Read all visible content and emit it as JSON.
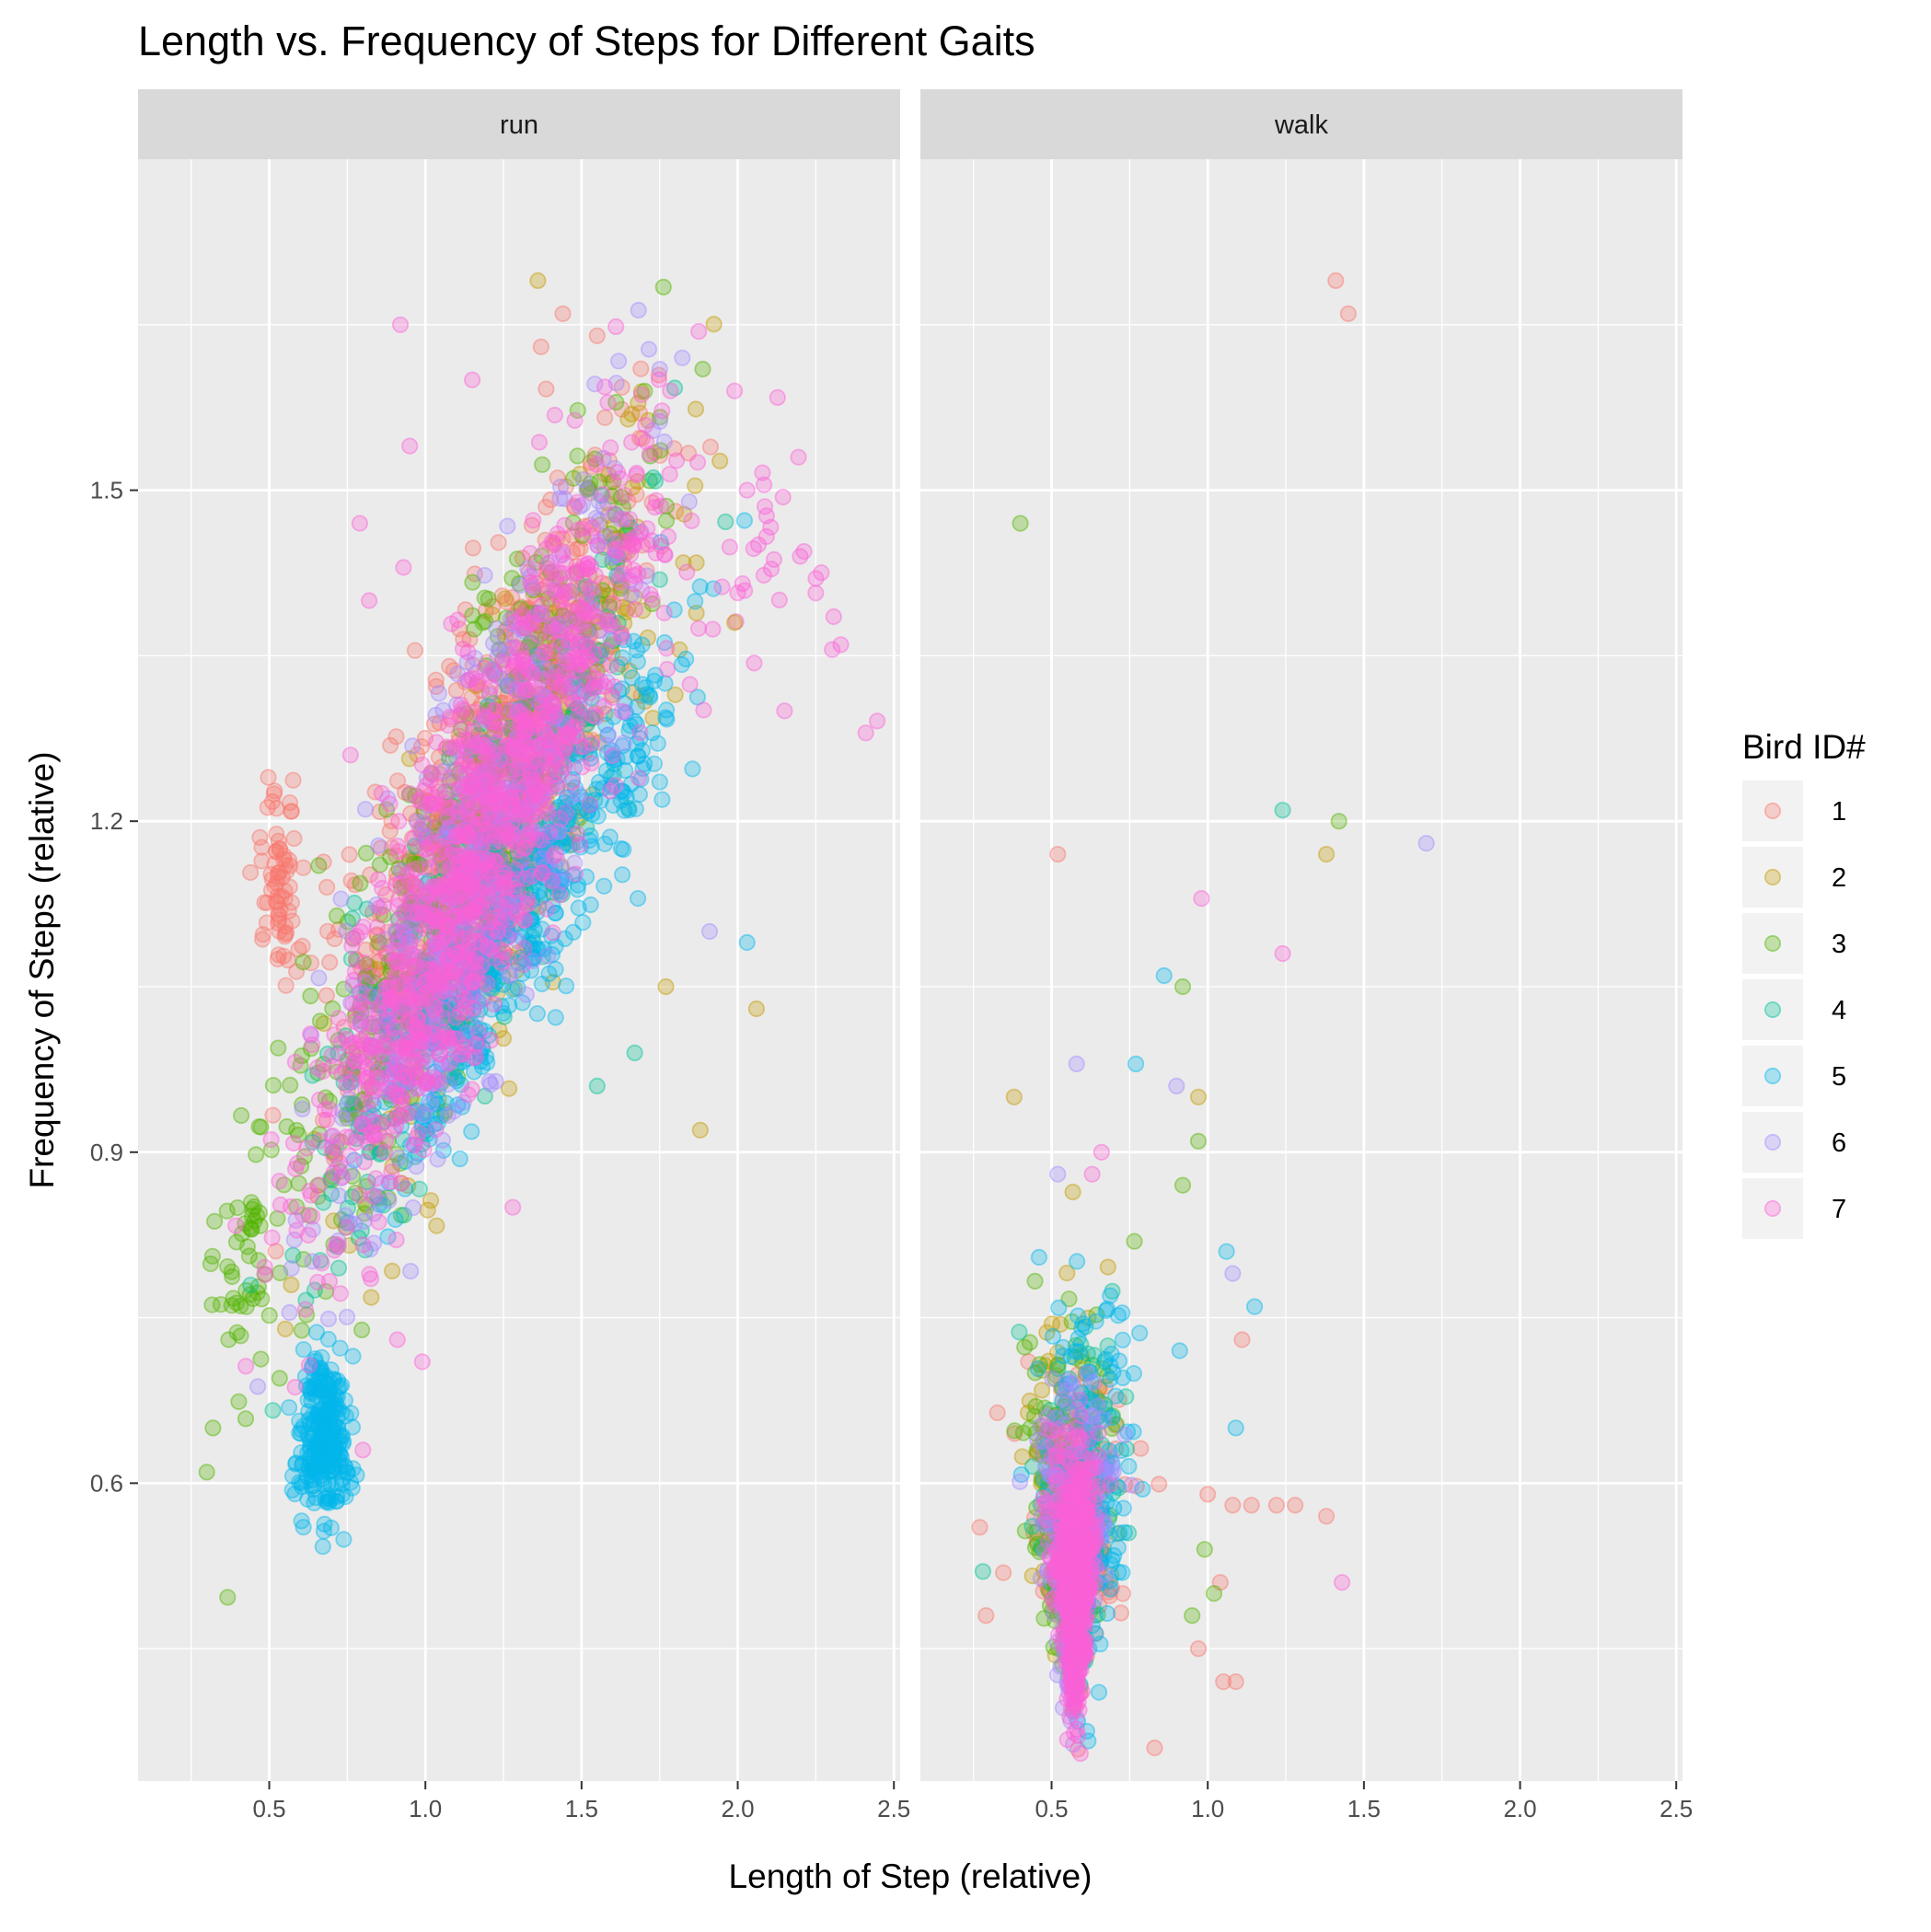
{
  "chart_data": {
    "type": "scatter",
    "title": "Length vs. Frequency of Steps for Different Gaits",
    "xlabel": "Length of Step (relative)",
    "ylabel": "Frequency of Steps (relative)",
    "xlim": [
      0.08,
      2.52
    ],
    "ylim": [
      0.33,
      1.8
    ],
    "x_ticks": [
      0.5,
      1.0,
      1.5,
      2.0,
      2.5
    ],
    "x_tick_labels": [
      "0.5",
      "1.0",
      "1.5",
      "2.0",
      "2.5"
    ],
    "y_ticks": [
      0.6,
      0.9,
      1.2,
      1.5
    ],
    "y_tick_labels": [
      "0.6",
      "0.9",
      "1.2",
      "1.5"
    ],
    "facets": [
      "run",
      "walk"
    ],
    "grid": true,
    "legend": {
      "title": "Bird ID#",
      "position": "right",
      "entries": [
        "1",
        "2",
        "3",
        "4",
        "5",
        "6",
        "7"
      ]
    },
    "series_colors": [
      "#F8766D",
      "#C49A00",
      "#53B400",
      "#00C094",
      "#00B6EB",
      "#A58AFF",
      "#FB61D7"
    ],
    "point_alpha": 0.3,
    "clusters": {
      "run": [
        {
          "bird": 1,
          "n": 500,
          "x": [
            0.6,
            1.8
          ],
          "y": [
            0.95,
            1.58
          ],
          "slope": 0.5
        },
        {
          "bird": 1,
          "n": 70,
          "x": [
            0.45,
            0.62
          ],
          "y": [
            1.05,
            1.23
          ],
          "slope": 0
        },
        {
          "bird": 2,
          "n": 350,
          "x": [
            0.65,
            1.9
          ],
          "y": [
            0.85,
            1.55
          ],
          "slope": 0.55
        },
        {
          "bird": 3,
          "n": 450,
          "x": [
            0.4,
            1.75
          ],
          "y": [
            0.78,
            1.5
          ],
          "slope": 0.55
        },
        {
          "bird": 3,
          "n": 40,
          "x": [
            0.28,
            0.55
          ],
          "y": [
            0.6,
            1.0
          ],
          "slope": 0.3
        },
        {
          "bird": 4,
          "n": 300,
          "x": [
            0.6,
            1.8
          ],
          "y": [
            0.85,
            1.45
          ],
          "slope": 0.5
        },
        {
          "bird": 5,
          "n": 450,
          "x": [
            0.75,
            1.9
          ],
          "y": [
            0.88,
            1.38
          ],
          "slope": 0.45
        },
        {
          "bird": 5,
          "n": 250,
          "x": [
            0.58,
            0.78
          ],
          "y": [
            0.56,
            0.72
          ],
          "slope": 0
        },
        {
          "bird": 6,
          "n": 500,
          "x": [
            0.6,
            1.75
          ],
          "y": [
            0.78,
            1.55
          ],
          "slope": 0.6
        },
        {
          "bird": 7,
          "n": 1100,
          "x": [
            0.55,
            1.75
          ],
          "y": [
            0.82,
            1.52
          ],
          "slope": 0.55
        },
        {
          "bird": 7,
          "n": 45,
          "x": [
            1.6,
            2.4
          ],
          "y": [
            1.28,
            1.6
          ],
          "slope": 0
        }
      ],
      "walk": [
        {
          "bird": 1,
          "n": 120,
          "x": [
            0.3,
            0.85
          ],
          "y": [
            0.4,
            0.72
          ],
          "slope": 0
        },
        {
          "bird": 2,
          "n": 100,
          "x": [
            0.38,
            0.75
          ],
          "y": [
            0.4,
            0.8
          ],
          "slope": 0
        },
        {
          "bird": 3,
          "n": 130,
          "x": [
            0.35,
            0.72
          ],
          "y": [
            0.4,
            0.8
          ],
          "slope": 0
        },
        {
          "bird": 4,
          "n": 120,
          "x": [
            0.42,
            0.75
          ],
          "y": [
            0.38,
            0.78
          ],
          "slope": 0
        },
        {
          "bird": 5,
          "n": 160,
          "x": [
            0.45,
            0.8
          ],
          "y": [
            0.38,
            0.82
          ],
          "slope": 0
        },
        {
          "bird": 6,
          "n": 200,
          "x": [
            0.42,
            0.72
          ],
          "y": [
            0.38,
            0.7
          ],
          "slope": 0
        },
        {
          "bird": 7,
          "n": 600,
          "x": [
            0.47,
            0.68
          ],
          "y": [
            0.38,
            0.65
          ],
          "slope": 0
        }
      ]
    },
    "outliers": {
      "run": [
        {
          "bird": 2,
          "x": 1.36,
          "y": 1.69
        },
        {
          "bird": 1,
          "x": 1.44,
          "y": 1.66
        },
        {
          "bird": 1,
          "x": 1.55,
          "y": 1.64
        },
        {
          "bird": 1,
          "x": 1.37,
          "y": 1.63
        },
        {
          "bird": 7,
          "x": 0.92,
          "y": 1.65
        },
        {
          "bird": 7,
          "x": 1.15,
          "y": 1.6
        },
        {
          "bird": 1,
          "x": 1.69,
          "y": 1.61
        },
        {
          "bird": 7,
          "x": 0.95,
          "y": 1.54
        },
        {
          "bird": 7,
          "x": 1.99,
          "y": 1.59
        },
        {
          "bird": 7,
          "x": 2.03,
          "y": 1.5
        },
        {
          "bird": 7,
          "x": 2.2,
          "y": 1.44
        },
        {
          "bird": 7,
          "x": 2.25,
          "y": 1.42
        },
        {
          "bird": 7,
          "x": 2.33,
          "y": 1.36
        },
        {
          "bird": 7,
          "x": 2.41,
          "y": 1.28
        },
        {
          "bird": 7,
          "x": 2.15,
          "y": 1.3
        },
        {
          "bird": 2,
          "x": 1.99,
          "y": 1.38
        },
        {
          "bird": 2,
          "x": 2.06,
          "y": 1.03
        },
        {
          "bird": 2,
          "x": 1.88,
          "y": 0.92
        },
        {
          "bird": 5,
          "x": 2.03,
          "y": 1.09
        },
        {
          "bird": 6,
          "x": 1.91,
          "y": 1.1
        },
        {
          "bird": 4,
          "x": 1.67,
          "y": 0.99
        },
        {
          "bird": 4,
          "x": 1.55,
          "y": 0.96
        },
        {
          "bird": 2,
          "x": 1.77,
          "y": 1.05
        },
        {
          "bird": 7,
          "x": 1.28,
          "y": 0.85
        },
        {
          "bird": 7,
          "x": 0.99,
          "y": 0.71
        },
        {
          "bird": 7,
          "x": 0.91,
          "y": 0.73
        },
        {
          "bird": 7,
          "x": 0.8,
          "y": 0.63
        },
        {
          "bird": 7,
          "x": 0.79,
          "y": 1.47
        },
        {
          "bird": 7,
          "x": 0.93,
          "y": 1.43
        },
        {
          "bird": 7,
          "x": 0.82,
          "y": 1.4
        },
        {
          "bird": 3,
          "x": 0.3,
          "y": 0.61
        },
        {
          "bird": 3,
          "x": 0.32,
          "y": 0.65
        },
        {
          "bird": 3,
          "x": 0.37,
          "y": 0.73
        },
        {
          "bird": 7,
          "x": 0.76,
          "y": 1.26
        }
      ],
      "walk": [
        {
          "bird": 1,
          "x": 1.41,
          "y": 1.69
        },
        {
          "bird": 1,
          "x": 1.45,
          "y": 1.66
        },
        {
          "bird": 3,
          "x": 0.4,
          "y": 1.47
        },
        {
          "bird": 4,
          "x": 1.24,
          "y": 1.21
        },
        {
          "bird": 3,
          "x": 1.42,
          "y": 1.2
        },
        {
          "bird": 6,
          "x": 1.7,
          "y": 1.18
        },
        {
          "bird": 2,
          "x": 1.38,
          "y": 1.17
        },
        {
          "bird": 1,
          "x": 0.52,
          "y": 1.17
        },
        {
          "bird": 7,
          "x": 0.98,
          "y": 1.13
        },
        {
          "bird": 7,
          "x": 1.24,
          "y": 1.08
        },
        {
          "bird": 5,
          "x": 0.86,
          "y": 1.06
        },
        {
          "bird": 3,
          "x": 0.92,
          "y": 1.05
        },
        {
          "bird": 5,
          "x": 0.77,
          "y": 0.98
        },
        {
          "bird": 6,
          "x": 0.58,
          "y": 0.98
        },
        {
          "bird": 6,
          "x": 0.9,
          "y": 0.96
        },
        {
          "bird": 2,
          "x": 0.97,
          "y": 0.95
        },
        {
          "bird": 2,
          "x": 0.38,
          "y": 0.95
        },
        {
          "bird": 3,
          "x": 0.97,
          "y": 0.91
        },
        {
          "bird": 7,
          "x": 0.66,
          "y": 0.9
        },
        {
          "bird": 3,
          "x": 0.92,
          "y": 0.87
        },
        {
          "bird": 6,
          "x": 0.52,
          "y": 0.88
        },
        {
          "bird": 7,
          "x": 0.63,
          "y": 0.88
        },
        {
          "bird": 5,
          "x": 1.06,
          "y": 0.81
        },
        {
          "bird": 6,
          "x": 1.08,
          "y": 0.79
        },
        {
          "bird": 5,
          "x": 1.15,
          "y": 0.76
        },
        {
          "bird": 1,
          "x": 1.11,
          "y": 0.73
        },
        {
          "bird": 5,
          "x": 0.91,
          "y": 0.72
        },
        {
          "bird": 5,
          "x": 1.09,
          "y": 0.65
        },
        {
          "bird": 1,
          "x": 1.0,
          "y": 0.59
        },
        {
          "bird": 1,
          "x": 1.08,
          "y": 0.58
        },
        {
          "bird": 1,
          "x": 1.14,
          "y": 0.58
        },
        {
          "bird": 1,
          "x": 1.22,
          "y": 0.58
        },
        {
          "bird": 1,
          "x": 1.28,
          "y": 0.58
        },
        {
          "bird": 1,
          "x": 1.38,
          "y": 0.57
        },
        {
          "bird": 7,
          "x": 1.43,
          "y": 0.51
        },
        {
          "bird": 3,
          "x": 0.99,
          "y": 0.54
        },
        {
          "bird": 1,
          "x": 1.04,
          "y": 0.51
        },
        {
          "bird": 3,
          "x": 1.02,
          "y": 0.5
        },
        {
          "bird": 3,
          "x": 0.95,
          "y": 0.48
        },
        {
          "bird": 1,
          "x": 0.97,
          "y": 0.45
        },
        {
          "bird": 1,
          "x": 1.05,
          "y": 0.42
        },
        {
          "bird": 1,
          "x": 1.09,
          "y": 0.42
        },
        {
          "bird": 1,
          "x": 0.83,
          "y": 0.36
        },
        {
          "bird": 1,
          "x": 0.27,
          "y": 0.56
        },
        {
          "bird": 1,
          "x": 0.29,
          "y": 0.48
        },
        {
          "bird": 4,
          "x": 0.28,
          "y": 0.52
        }
      ]
    }
  }
}
